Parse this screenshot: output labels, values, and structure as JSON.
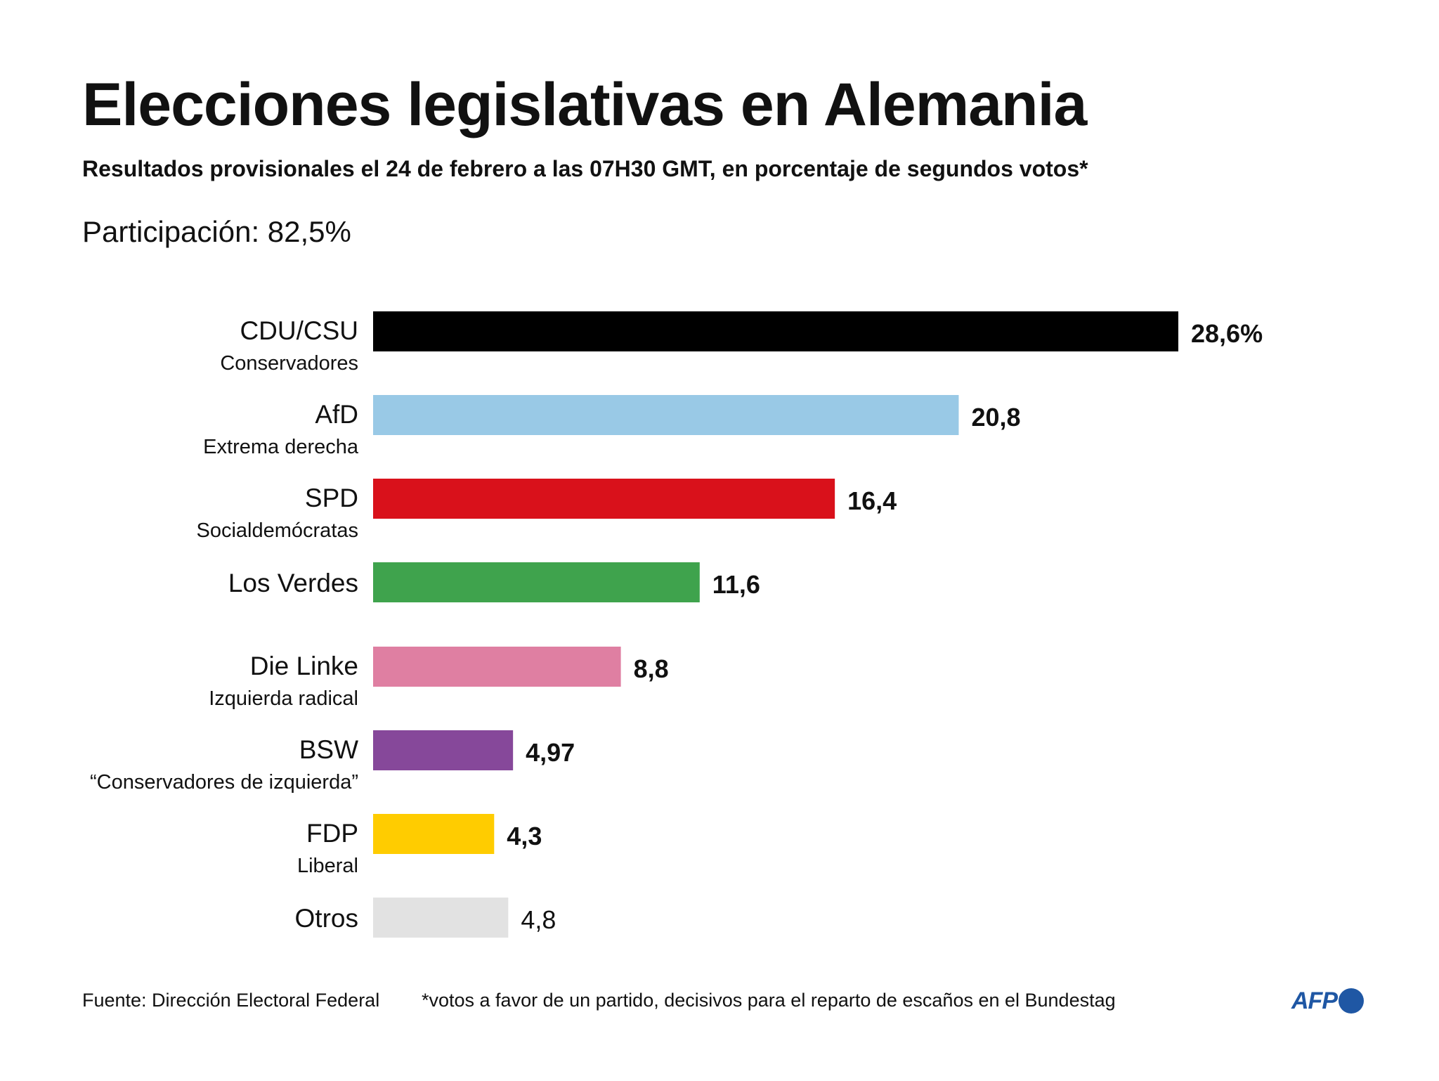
{
  "title": "Elecciones legislativas en Alemania",
  "subtitle": "Resultados provisionales el 24 de febrero a las 07H30 GMT, en porcentaje de segundos votos*",
  "turnout": "Participación: 82,5%",
  "footer": {
    "source": "Fuente: Dirección Electoral Federal",
    "note": "*votos a favor de un partido, decisivos para el reparto de escaños en el Bundestag"
  },
  "logo": {
    "text": "AFP",
    "color": "#1f57a4"
  },
  "chart_data": {
    "type": "bar",
    "orientation": "horizontal",
    "xlim": [
      0,
      28.6
    ],
    "grid": false,
    "categories": [
      "CDU/CSU",
      "AfD",
      "SPD",
      "Los Verdes",
      "Die Linke",
      "BSW",
      "FDP",
      "Otros"
    ],
    "sublabels": [
      "Conservadores",
      "Extrema derecha",
      "Socialdemócratas",
      "",
      "Izquierda radical",
      "“Conservadores de izquierda”",
      "Liberal",
      ""
    ],
    "values": [
      28.6,
      20.8,
      16.4,
      11.6,
      8.8,
      4.97,
      4.3,
      4.8
    ],
    "value_labels": [
      "28,6%",
      "20,8",
      "16,4",
      "11,6",
      "8,8",
      "4,97",
      "4,3",
      "4,8"
    ],
    "value_label_bold": [
      true,
      true,
      true,
      true,
      true,
      true,
      true,
      false
    ],
    "colors": [
      "#000000",
      "#99c9e6",
      "#d9111b",
      "#3fa34d",
      "#df7fa2",
      "#86489a",
      "#ffcc00",
      "#e2e2e2"
    ]
  }
}
